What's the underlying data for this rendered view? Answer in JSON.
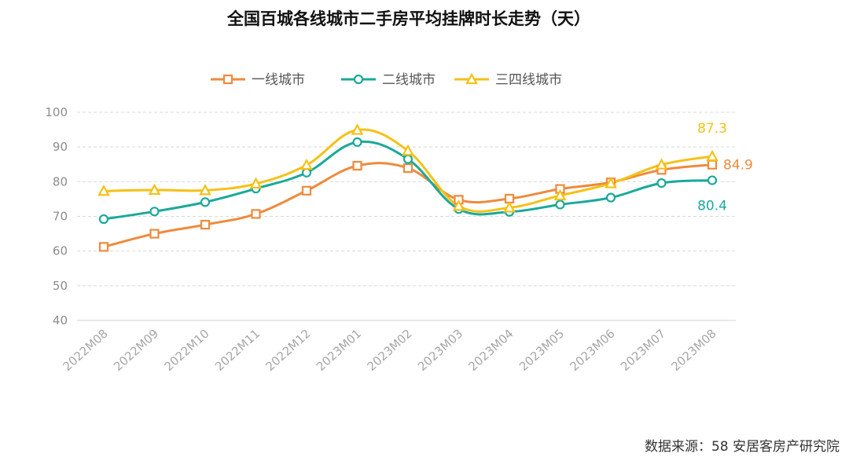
{
  "chart_data": {
    "type": "line",
    "title": "全国百城各线城市二手房平均挂牌时长走势（天）",
    "categories": [
      "2022M08",
      "2022M09",
      "2022M10",
      "2022M11",
      "2022M12",
      "2023M01",
      "2023M02",
      "2023M03",
      "2023M04",
      "2023M05",
      "2023M06",
      "2023M07",
      "2023M08"
    ],
    "series": [
      {
        "name": "一线城市",
        "color": "#ef8a3c",
        "marker": "square",
        "values": [
          61.2,
          65.0,
          67.6,
          70.7,
          77.4,
          84.6,
          83.9,
          74.8,
          75.1,
          77.9,
          79.8,
          83.4,
          84.9
        ],
        "end_label": "84.9"
      },
      {
        "name": "二线城市",
        "color": "#1aa99a",
        "marker": "circle",
        "values": [
          69.2,
          71.4,
          74.1,
          78.0,
          82.6,
          91.4,
          86.5,
          72.1,
          71.3,
          73.4,
          75.4,
          79.6,
          80.4
        ],
        "end_label": "80.4"
      },
      {
        "name": "三四线城市",
        "color": "#f5c116",
        "marker": "triangle",
        "values": [
          77.3,
          77.6,
          77.5,
          79.4,
          84.8,
          94.9,
          88.9,
          73.0,
          72.5,
          76.0,
          79.5,
          84.9,
          87.3
        ],
        "end_label": "87.3"
      }
    ],
    "ylim": [
      40,
      100
    ],
    "yticks": [
      40,
      50,
      60,
      70,
      80,
      90,
      100
    ],
    "grid": true,
    "legend": "top"
  },
  "source": "数据来源：58 安居客房产研究院"
}
